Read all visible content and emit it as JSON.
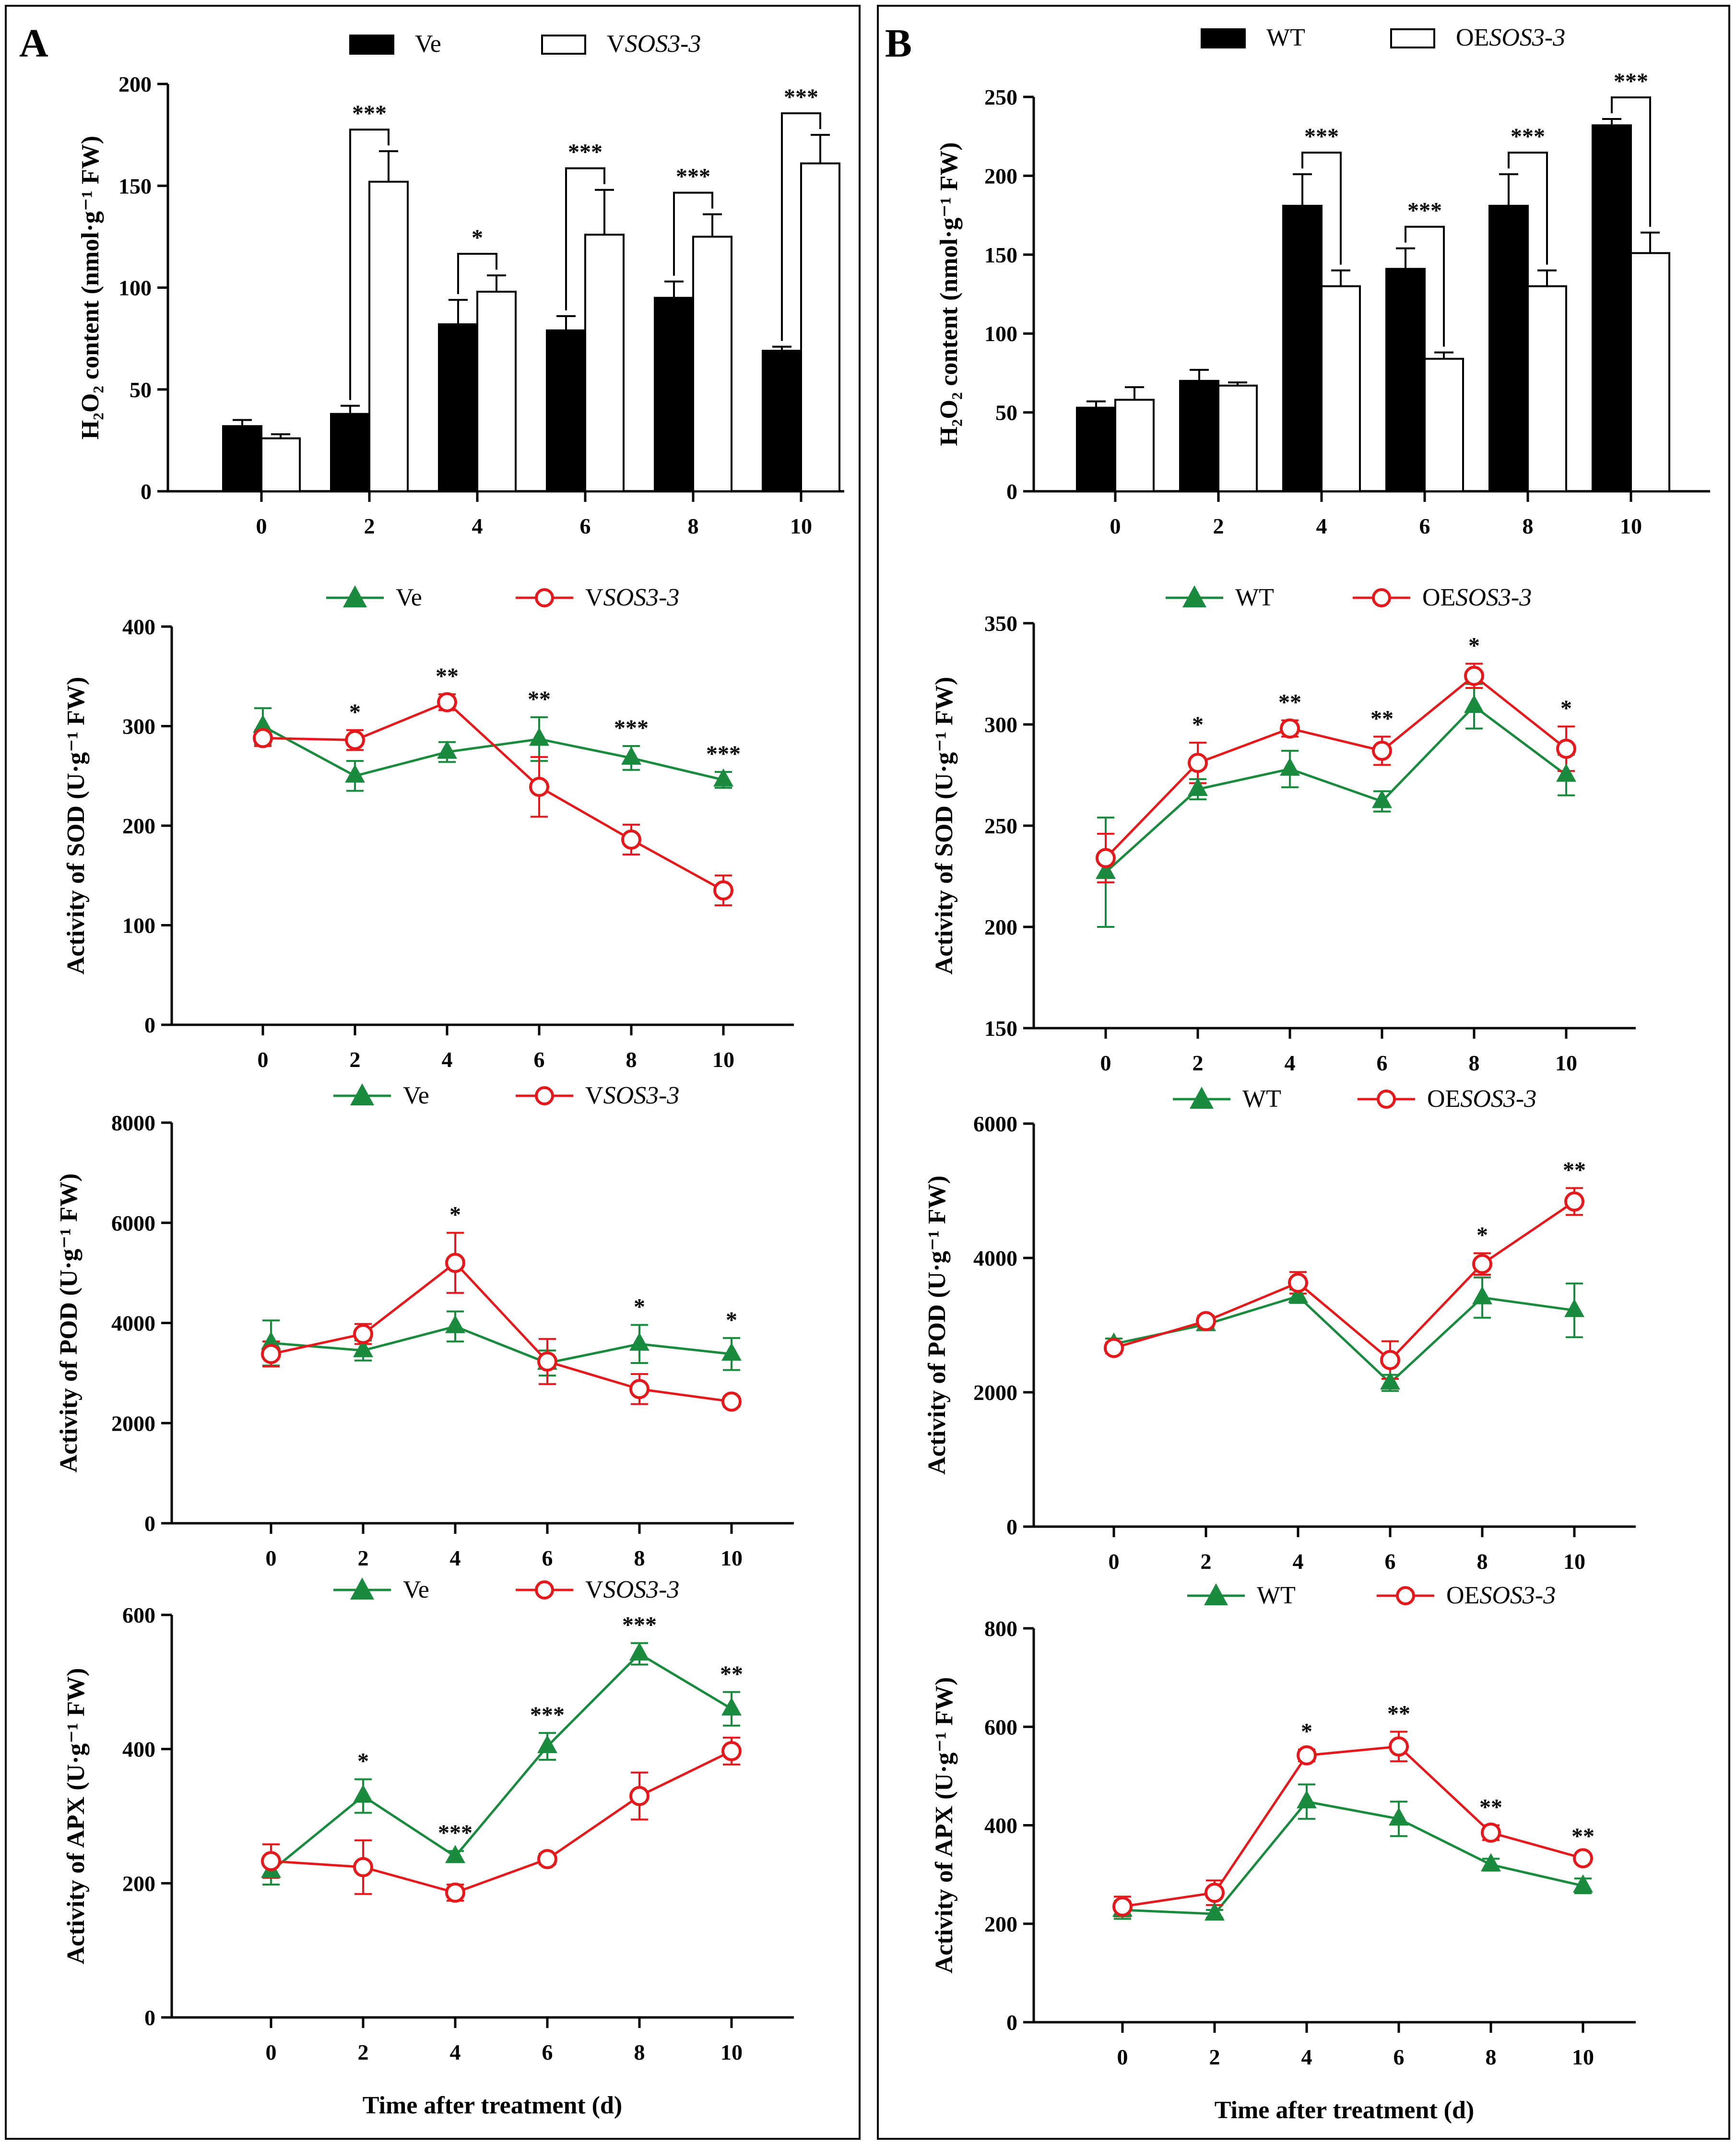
{
  "figure": {
    "panel_labels": [
      "A",
      "B"
    ],
    "time_axis_label": "Time after treatment (d)"
  },
  "colors": {
    "green": "#1a8a3e",
    "red": "#e5191c",
    "black": "#000000"
  },
  "chart_data": [
    {
      "id": "a_h2o2",
      "panel": "A",
      "type": "bar",
      "title": "",
      "xlabel": "",
      "ylabel": "H₂O₂ content (nmol·g⁻¹ FW)",
      "categories": [
        "0",
        "2",
        "4",
        "6",
        "8",
        "10"
      ],
      "ylim": [
        0,
        200
      ],
      "yticks": [
        0,
        50,
        100,
        150,
        200
      ],
      "legend": [
        "Ve",
        "VSOS3-3"
      ],
      "series": [
        {
          "name": "Ve",
          "values": [
            32,
            38,
            82,
            79,
            95,
            69
          ],
          "errors": [
            3,
            4,
            12,
            7,
            8,
            2
          ]
        },
        {
          "name": "VSOS3-3",
          "values": [
            26,
            152,
            98,
            126,
            125,
            161
          ],
          "errors": [
            2,
            15,
            8,
            22,
            11,
            14
          ]
        }
      ],
      "significance": [
        "",
        "***",
        "*",
        "***",
        "***",
        "***"
      ]
    },
    {
      "id": "b_h2o2",
      "panel": "B",
      "type": "bar",
      "title": "",
      "xlabel": "",
      "ylabel": "H₂O₂ content (nmol·g⁻¹ FW)",
      "categories": [
        "0",
        "2",
        "4",
        "6",
        "8",
        "10"
      ],
      "ylim": [
        0,
        250
      ],
      "yticks": [
        0,
        50,
        100,
        150,
        200,
        250
      ],
      "legend": [
        "WT",
        "OESOS3-3"
      ],
      "series": [
        {
          "name": "WT",
          "values": [
            53,
            70,
            181,
            141,
            181,
            232
          ],
          "errors": [
            4,
            7,
            20,
            13,
            20,
            4
          ]
        },
        {
          "name": "OESOS3-3",
          "values": [
            58,
            67,
            130,
            84,
            130,
            151
          ],
          "errors": [
            8,
            2,
            10,
            4,
            10,
            13
          ]
        }
      ],
      "significance": [
        "",
        "",
        "***",
        "***",
        "***",
        "***"
      ]
    },
    {
      "id": "a_sod",
      "panel": "A",
      "type": "line",
      "title": "",
      "xlabel": "",
      "ylabel": "Activity of SOD (U·g⁻¹ FW)",
      "categories": [
        "0",
        "2",
        "4",
        "6",
        "8",
        "10"
      ],
      "ylim": [
        0,
        400
      ],
      "yticks": [
        0,
        100,
        200,
        300,
        400
      ],
      "legend": [
        "Ve",
        "VSOS3-3"
      ],
      "series": [
        {
          "name": "Ve",
          "values": [
            300,
            250,
            274,
            287,
            268,
            246
          ],
          "errors": [
            18,
            15,
            10,
            22,
            12,
            8
          ]
        },
        {
          "name": "VSOS3-3",
          "values": [
            288,
            286,
            324,
            239,
            186,
            135
          ],
          "errors": [
            8,
            10,
            8,
            30,
            15,
            15
          ]
        }
      ],
      "significance": [
        "",
        "*",
        "**",
        "**",
        "***",
        "***"
      ]
    },
    {
      "id": "b_sod",
      "panel": "B",
      "type": "line",
      "title": "",
      "xlabel": "",
      "ylabel": "Activity of SOD (U·g⁻¹ FW)",
      "categories": [
        "0",
        "2",
        "4",
        "6",
        "8",
        "10"
      ],
      "ylim": [
        150,
        350
      ],
      "yticks": [
        150,
        200,
        250,
        300,
        350
      ],
      "legend": [
        "WT",
        "OESOS3-3"
      ],
      "series": [
        {
          "name": "WT",
          "values": [
            227,
            268,
            278,
            262,
            309,
            275
          ],
          "errors": [
            27,
            5,
            9,
            5,
            11,
            10
          ]
        },
        {
          "name": "OESOS3-3",
          "values": [
            234,
            281,
            298,
            287,
            324,
            288
          ],
          "errors": [
            12,
            10,
            4,
            7,
            6,
            11
          ]
        }
      ],
      "significance": [
        "",
        "*",
        "**",
        "**",
        "*",
        "*"
      ]
    },
    {
      "id": "a_pod",
      "panel": "A",
      "type": "line",
      "title": "",
      "xlabel": "",
      "ylabel": "Activity of POD (U·g⁻¹ FW)",
      "categories": [
        "0",
        "2",
        "4",
        "6",
        "8",
        "10"
      ],
      "ylim": [
        0,
        8000
      ],
      "yticks": [
        0,
        2000,
        4000,
        6000,
        8000
      ],
      "legend": [
        "Ve",
        "VSOS3-3"
      ],
      "series": [
        {
          "name": "Ve",
          "values": [
            3600,
            3450,
            3930,
            3200,
            3580,
            3380
          ],
          "errors": [
            450,
            200,
            300,
            250,
            380,
            320
          ]
        },
        {
          "name": "VSOS3-3",
          "values": [
            3380,
            3780,
            5200,
            3230,
            2680,
            2430
          ],
          "errors": [
            250,
            200,
            600,
            450,
            300,
            100
          ]
        }
      ],
      "significance": [
        "",
        "",
        "*",
        "",
        "*",
        "*"
      ]
    },
    {
      "id": "b_pod",
      "panel": "B",
      "type": "line",
      "title": "",
      "xlabel": "",
      "ylabel": "Activity of POD (U·g⁻¹ FW)",
      "categories": [
        "0",
        "2",
        "4",
        "6",
        "8",
        "10"
      ],
      "ylim": [
        0,
        6000
      ],
      "yticks": [
        0,
        2000,
        4000,
        6000
      ],
      "legend": [
        "WT",
        "OESOS3-3"
      ],
      "series": [
        {
          "name": "WT",
          "values": [
            2720,
            3010,
            3430,
            2140,
            3410,
            3220
          ],
          "errors": [
            80,
            80,
            100,
            120,
            300,
            400
          ]
        },
        {
          "name": "OESOS3-3",
          "values": [
            2660,
            3060,
            3630,
            2480,
            3910,
            4840
          ],
          "errors": [
            80,
            80,
            160,
            280,
            160,
            200
          ]
        }
      ],
      "significance": [
        "",
        "",
        "",
        "",
        "*",
        "**"
      ]
    },
    {
      "id": "a_apx",
      "panel": "A",
      "type": "line",
      "title": "",
      "xlabel": "Time after treatment (d)",
      "ylabel": "Activity of APX (U·g⁻¹ FW)",
      "categories": [
        "0",
        "2",
        "4",
        "6",
        "8",
        "10"
      ],
      "ylim": [
        0,
        600
      ],
      "yticks": [
        0,
        200,
        400,
        600
      ],
      "legend": [
        "Ve",
        "VSOS3-3"
      ],
      "series": [
        {
          "name": "Ve",
          "values": [
            218,
            330,
            240,
            404,
            542,
            460
          ],
          "errors": [
            20,
            25,
            8,
            20,
            16,
            25
          ]
        },
        {
          "name": "VSOS3-3",
          "values": [
            233,
            224,
            186,
            236,
            330,
            397
          ],
          "errors": [
            25,
            40,
            12,
            8,
            35,
            20
          ]
        }
      ],
      "significance": [
        "",
        "*",
        "***",
        "***",
        "***",
        "**"
      ]
    },
    {
      "id": "b_apx",
      "panel": "B",
      "type": "line",
      "title": "",
      "xlabel": "Time after treatment (d)",
      "ylabel": "Activity of APX (U·g⁻¹ FW)",
      "categories": [
        "0",
        "2",
        "4",
        "6",
        "8",
        "10"
      ],
      "ylim": [
        0,
        800
      ],
      "yticks": [
        0,
        200,
        400,
        600,
        800
      ],
      "legend": [
        "WT",
        "OESOS3-3"
      ],
      "series": [
        {
          "name": "WT",
          "values": [
            228,
            220,
            448,
            413,
            320,
            277
          ],
          "errors": [
            18,
            8,
            35,
            35,
            12,
            15
          ]
        },
        {
          "name": "OESOS3-3",
          "values": [
            235,
            263,
            542,
            560,
            385,
            333
          ],
          "errors": [
            20,
            25,
            12,
            30,
            15,
            8
          ]
        }
      ],
      "significance": [
        "",
        "",
        "*",
        "**",
        "**",
        "**"
      ]
    }
  ]
}
